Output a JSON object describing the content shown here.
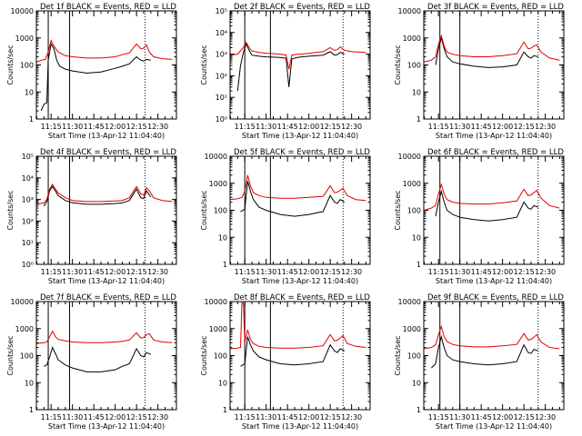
{
  "colors": {
    "events": "#000000",
    "lld": "#e00000"
  },
  "x_tick_labels": [
    "11:15",
    "11:30",
    "11:45",
    "12:00",
    "12:15",
    "12:30"
  ],
  "x_tick_minutes": [
    15,
    30,
    45,
    60,
    75,
    90
  ],
  "x_range_minutes": [
    4.67,
    103
  ],
  "xlabel": "Start Time (13-Apr-12 11:04:40)",
  "ylabel": "Counts/sec",
  "chart_data": [
    {
      "type": "line",
      "title": "Det 1f BLACK = Events, RED = LLD",
      "xlabel": "Start Time (13-Apr-12 11:04:40)",
      "ylabel": "Counts/sec",
      "yscale": "log",
      "ylim": [
        1,
        10000
      ],
      "y_tick_labels": [
        "1",
        "10",
        "100",
        "1000",
        "10000"
      ],
      "vlines_solid": [
        13,
        28
      ],
      "vlines_dotted": [
        81
      ],
      "series": [
        {
          "name": "BLACK = Events",
          "x": [
            8,
            10,
            12,
            13,
            15,
            17,
            19,
            21,
            25,
            30,
            40,
            50,
            60,
            65,
            70,
            75,
            78,
            80,
            82,
            85
          ],
          "y": [
            2,
            3.5,
            4,
            150,
            600,
            400,
            150,
            90,
            70,
            60,
            50,
            55,
            75,
            90,
            110,
            200,
            150,
            140,
            160,
            150
          ]
        },
        {
          "name": "RED = LLD",
          "x": [
            5,
            8,
            11,
            13,
            15,
            17,
            20,
            25,
            30,
            40,
            50,
            60,
            65,
            70,
            75,
            78,
            80,
            82,
            84,
            87,
            93,
            100
          ],
          "y": [
            130,
            150,
            160,
            300,
            800,
            500,
            300,
            220,
            200,
            180,
            180,
            200,
            240,
            280,
            600,
            400,
            420,
            550,
            300,
            200,
            170,
            160
          ]
        }
      ]
    },
    {
      "type": "line",
      "title": "Det 2f BLACK = Events, RED = LLD",
      "xlabel": "Start Time (13-Apr-12 11:04:40)",
      "ylabel": "Counts/sec",
      "yscale": "log",
      "ylim": [
        1,
        100000
      ],
      "y_tick_labels": [
        "10⁰",
        "10¹",
        "10²",
        "10³",
        "10⁴",
        "10⁵"
      ],
      "vlines_solid": [
        15,
        33
      ],
      "vlines_dotted": [
        84
      ],
      "series": [
        {
          "name": "BLACK = Events",
          "x": [
            10,
            12,
            14,
            16,
            18,
            20,
            25,
            30,
            40,
            44,
            46,
            48,
            52,
            55,
            60,
            70,
            75,
            78,
            80,
            82,
            85
          ],
          "y": [
            20,
            300,
            1200,
            3000,
            1500,
            900,
            800,
            750,
            700,
            650,
            30,
            600,
            700,
            750,
            800,
            900,
            1300,
            900,
            950,
            1200,
            1000
          ]
        },
        {
          "name": "RED = LLD",
          "x": [
            5,
            10,
            14,
            16,
            18,
            20,
            25,
            30,
            40,
            44,
            46,
            48,
            52,
            55,
            60,
            70,
            75,
            78,
            80,
            82,
            85,
            90,
            100
          ],
          "y": [
            900,
            1000,
            2000,
            3500,
            2000,
            1400,
            1200,
            1100,
            1000,
            900,
            200,
            900,
            1000,
            1000,
            1100,
            1300,
            2000,
            1500,
            1600,
            2200,
            1500,
            1300,
            1200
          ]
        }
      ]
    },
    {
      "type": "line",
      "title": "Det 3f BLACK = Events, RED = LLD",
      "xlabel": "Start Time (13-Apr-12 11:04:40)",
      "ylabel": "Counts/sec",
      "yscale": "log",
      "ylim": [
        1,
        10000
      ],
      "y_tick_labels": [
        "1",
        "10",
        "100",
        "1000",
        "10000"
      ],
      "vlines_solid": [
        16,
        30
      ],
      "vlines_dotted": [
        85
      ],
      "series": [
        {
          "name": "BLACK = Events",
          "x": [
            13,
            15,
            17,
            19,
            21,
            25,
            30,
            40,
            50,
            60,
            70,
            75,
            78,
            80,
            82,
            85
          ],
          "y": [
            100,
            400,
            1000,
            400,
            200,
            130,
            110,
            90,
            80,
            85,
            100,
            300,
            200,
            180,
            220,
            200
          ]
        },
        {
          "name": "RED = LLD",
          "x": [
            5,
            10,
            13,
            15,
            17,
            19,
            21,
            25,
            30,
            40,
            50,
            60,
            70,
            75,
            78,
            80,
            82,
            84,
            87,
            93,
            100
          ],
          "y": [
            130,
            150,
            200,
            600,
            1200,
            500,
            300,
            250,
            220,
            200,
            200,
            220,
            260,
            700,
            400,
            420,
            500,
            550,
            300,
            180,
            150
          ]
        }
      ]
    },
    {
      "type": "line",
      "title": "Det 4f BLACK = Events, RED = LLD",
      "xlabel": "Start Time (13-Apr-12 11:04:40)",
      "ylabel": "Counts/sec",
      "yscale": "log",
      "ylim": [
        1,
        100000
      ],
      "y_tick_labels": [
        "10⁰",
        "10¹",
        "10²",
        "10³",
        "10⁴",
        "10⁵"
      ],
      "vlines_solid": [
        13,
        28
      ],
      "vlines_dotted": [
        81
      ],
      "series": [
        {
          "name": "BLACK = Events",
          "x": [
            10,
            12,
            14,
            16,
            18,
            20,
            25,
            30,
            40,
            50,
            60,
            65,
            70,
            75,
            78,
            80,
            82,
            85
          ],
          "y": [
            500,
            800,
            2500,
            4000,
            2500,
            1500,
            900,
            700,
            600,
            600,
            650,
            700,
            900,
            3000,
            1200,
            1100,
            2500,
            1300
          ]
        },
        {
          "name": "RED = LLD",
          "x": [
            5,
            10,
            12,
            14,
            16,
            18,
            20,
            25,
            30,
            40,
            50,
            60,
            65,
            70,
            75,
            78,
            80,
            82,
            84,
            87,
            93,
            100
          ],
          "y": [
            600,
            700,
            1000,
            3000,
            5000,
            3000,
            2000,
            1200,
            900,
            800,
            800,
            850,
            900,
            1200,
            4000,
            1800,
            1600,
            3500,
            2500,
            1200,
            900,
            800
          ]
        }
      ]
    },
    {
      "type": "line",
      "title": "Det 5f BLACK = Events, RED = LLD",
      "xlabel": "Start Time (13-Apr-12 11:04:40)",
      "ylabel": "Counts/sec",
      "yscale": "log",
      "ylim": [
        1,
        10000
      ],
      "y_tick_labels": [
        "1",
        "10",
        "100",
        "1000",
        "10000"
      ],
      "vlines_solid": [
        15,
        33
      ],
      "vlines_dotted": [
        84
      ],
      "series": [
        {
          "name": "BLACK = Events",
          "x": [
            12,
            15,
            17,
            19,
            21,
            25,
            30,
            40,
            50,
            60,
            70,
            75,
            78,
            80,
            82,
            85
          ],
          "y": [
            90,
            110,
            1200,
            500,
            250,
            130,
            100,
            70,
            60,
            70,
            90,
            350,
            200,
            180,
            250,
            200
          ]
        },
        {
          "name": "RED = LLD",
          "x": [
            5,
            10,
            13,
            15,
            17,
            19,
            21,
            25,
            30,
            40,
            50,
            60,
            70,
            75,
            78,
            80,
            82,
            84,
            87,
            93,
            100
          ],
          "y": [
            250,
            270,
            300,
            500,
            2000,
            800,
            450,
            350,
            300,
            280,
            280,
            300,
            330,
            800,
            450,
            470,
            550,
            650,
            350,
            250,
            230
          ]
        }
      ]
    },
    {
      "type": "line",
      "title": "Det 6f BLACK = Events, RED = LLD",
      "xlabel": "Start Time (13-Apr-12 11:04:40)",
      "ylabel": "Counts/sec",
      "yscale": "log",
      "ylim": [
        1,
        10000
      ],
      "y_tick_labels": [
        "1",
        "10",
        "100",
        "1000",
        "10000"
      ],
      "vlines_solid": [
        16,
        30
      ],
      "vlines_dotted": [
        85
      ],
      "series": [
        {
          "name": "BLACK = Events",
          "x": [
            13,
            15,
            17,
            19,
            21,
            25,
            30,
            40,
            50,
            60,
            70,
            75,
            78,
            80,
            82,
            85
          ],
          "y": [
            60,
            200,
            500,
            200,
            100,
            70,
            55,
            45,
            40,
            45,
            55,
            200,
            120,
            110,
            150,
            130
          ]
        },
        {
          "name": "RED = LLD",
          "x": [
            5,
            10,
            13,
            15,
            17,
            19,
            21,
            25,
            30,
            40,
            50,
            60,
            70,
            75,
            78,
            80,
            82,
            84,
            87,
            93,
            100
          ],
          "y": [
            100,
            120,
            150,
            400,
            900,
            400,
            250,
            200,
            180,
            170,
            170,
            190,
            220,
            600,
            350,
            370,
            450,
            550,
            280,
            150,
            120
          ]
        }
      ]
    },
    {
      "type": "line",
      "title": "Det 7f BLACK = Events, RED = LLD",
      "xlabel": "Start Time (13-Apr-12 11:04:40)",
      "ylabel": "Counts/sec",
      "yscale": "log",
      "ylim": [
        1,
        10000
      ],
      "y_tick_labels": [
        "1",
        "10",
        "100",
        "1000",
        "10000"
      ],
      "vlines_solid": [
        13,
        28
      ],
      "vlines_dotted": [
        81
      ],
      "series": [
        {
          "name": "BLACK = Events",
          "x": [
            10,
            12,
            14,
            16,
            18,
            20,
            25,
            30,
            40,
            50,
            60,
            65,
            70,
            75,
            78,
            80,
            82,
            85
          ],
          "y": [
            40,
            45,
            90,
            200,
            120,
            70,
            45,
            35,
            25,
            25,
            30,
            40,
            50,
            180,
            100,
            90,
            130,
            110
          ]
        },
        {
          "name": "RED = LLD",
          "x": [
            5,
            10,
            12,
            14,
            16,
            18,
            20,
            25,
            30,
            40,
            50,
            60,
            65,
            70,
            75,
            78,
            80,
            82,
            84,
            87,
            93,
            100
          ],
          "y": [
            280,
            300,
            320,
            500,
            800,
            500,
            400,
            350,
            320,
            300,
            300,
            320,
            340,
            380,
            700,
            450,
            460,
            600,
            650,
            380,
            320,
            300
          ]
        }
      ]
    },
    {
      "type": "line",
      "title": "Det 8f BLACK = Events, RED = LLD",
      "xlabel": "Start Time (13-Apr-12 11:04:40)",
      "ylabel": "Counts/sec",
      "yscale": "log",
      "ylim": [
        1,
        10000
      ],
      "y_tick_labels": [
        "1",
        "10",
        "100",
        "1000",
        "10000"
      ],
      "vlines_solid": [
        15,
        33
      ],
      "vlines_dotted": [
        84
      ],
      "series": [
        {
          "name": "BLACK = Events",
          "x": [
            12,
            15,
            17,
            19,
            21,
            25,
            30,
            40,
            50,
            60,
            70,
            75,
            78,
            80,
            82,
            85
          ],
          "y": [
            40,
            50,
            500,
            250,
            150,
            90,
            70,
            50,
            45,
            50,
            60,
            250,
            150,
            130,
            180,
            150
          ]
        },
        {
          "name": "RED = LLD",
          "x": [
            5,
            10,
            12,
            13,
            14,
            15,
            17,
            19,
            21,
            25,
            30,
            40,
            50,
            60,
            70,
            75,
            78,
            80,
            82,
            84,
            87,
            93,
            100
          ],
          "y": [
            180,
            190,
            200,
            9000,
            9000,
            300,
            900,
            400,
            280,
            220,
            200,
            190,
            190,
            200,
            230,
            600,
            350,
            370,
            450,
            550,
            280,
            220,
            200
          ]
        }
      ]
    },
    {
      "type": "line",
      "title": "Det 9f BLACK = Events, RED = LLD",
      "xlabel": "Start Time (13-Apr-12 11:04:40)",
      "ylabel": "Counts/sec",
      "yscale": "log",
      "ylim": [
        1,
        10000
      ],
      "y_tick_labels": [
        "1",
        "10",
        "100",
        "1000",
        "10000"
      ],
      "vlines_solid": [
        16,
        30
      ],
      "vlines_dotted": [
        85
      ],
      "series": [
        {
          "name": "BLACK = Events",
          "x": [
            10,
            13,
            15,
            17,
            19,
            21,
            25,
            30,
            40,
            50,
            60,
            70,
            75,
            78,
            80,
            82,
            85
          ],
          "y": [
            35,
            50,
            200,
            500,
            200,
            100,
            70,
            60,
            50,
            45,
            50,
            60,
            250,
            130,
            120,
            170,
            150
          ]
        },
        {
          "name": "RED = LLD",
          "x": [
            5,
            10,
            13,
            15,
            17,
            19,
            21,
            25,
            30,
            40,
            50,
            60,
            70,
            75,
            78,
            80,
            82,
            84,
            87,
            93,
            100
          ],
          "y": [
            180,
            200,
            250,
            600,
            1200,
            500,
            330,
            260,
            230,
            210,
            210,
            230,
            260,
            650,
            380,
            400,
            480,
            600,
            320,
            200,
            180
          ]
        }
      ]
    }
  ]
}
